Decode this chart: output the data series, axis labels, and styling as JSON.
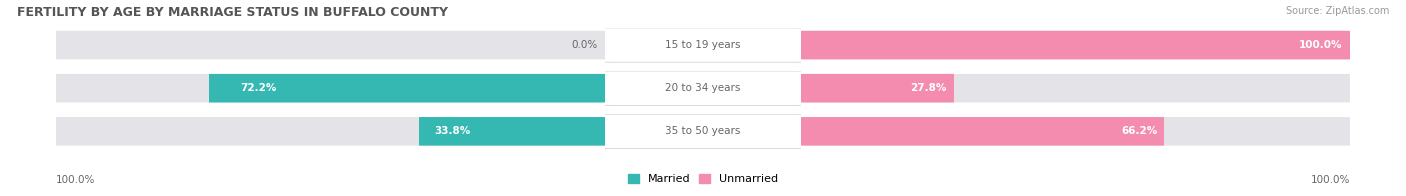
{
  "title": "FERTILITY BY AGE BY MARRIAGE STATUS IN BUFFALO COUNTY",
  "source": "Source: ZipAtlas.com",
  "categories": [
    "15 to 19 years",
    "20 to 34 years",
    "35 to 50 years"
  ],
  "married": [
    0.0,
    72.2,
    33.8
  ],
  "unmarried": [
    100.0,
    27.8,
    66.2
  ],
  "married_color": "#35b8b2",
  "unmarried_color": "#f48caf",
  "bar_bg_color": "#e4e4e8",
  "row_bg_color": "#ebebee",
  "title_color": "#555555",
  "text_color": "#666666",
  "value_inside_color": "#ffffff",
  "axis_label_left": "100.0%",
  "axis_label_right": "100.0%",
  "legend_married": "Married",
  "legend_unmarried": "Unmarried"
}
